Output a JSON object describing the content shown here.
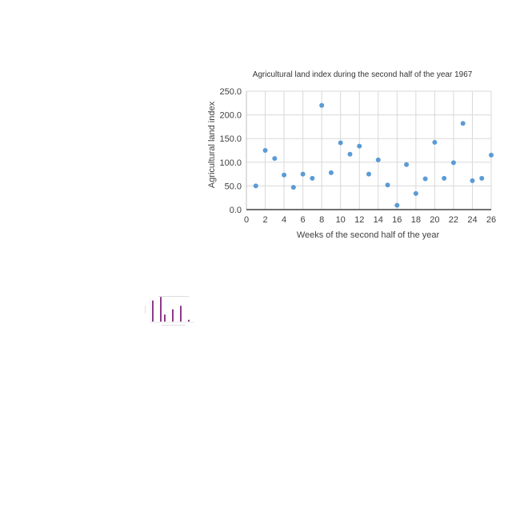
{
  "chart_data": [
    {
      "type": "scatter",
      "title": "Agricultural land index during the second half of the year 1967",
      "xlabel": "Weeks of the second half of the year",
      "ylabel": "Agricultural land index",
      "xlim": [
        0,
        26
      ],
      "ylim": [
        0,
        250
      ],
      "xticks": [
        "0",
        "2",
        "4",
        "6",
        "8",
        "10",
        "12",
        "14",
        "16",
        "18",
        "20",
        "22",
        "24",
        "26"
      ],
      "yticks": [
        "0.0",
        "50.0",
        "100.0",
        "150.0",
        "200.0",
        "250.0"
      ],
      "grid": true,
      "legend": "none",
      "marker_color": "#5b9bd5",
      "series": [
        {
          "x": [
            1,
            2,
            3,
            4,
            5,
            6,
            7,
            8,
            9,
            10,
            11,
            12,
            13,
            14,
            15,
            16,
            17,
            18,
            19,
            20,
            21,
            22,
            23,
            24,
            25,
            26
          ],
          "y": [
            50,
            125,
            108,
            73,
            47,
            75,
            66,
            220,
            78,
            141,
            117,
            134,
            75,
            105,
            52,
            9,
            95,
            34,
            65,
            142,
            66,
            99,
            182,
            61,
            66,
            115
          ]
        }
      ]
    },
    {
      "type": "bar",
      "title": "",
      "bar_color": "#8e3a8a",
      "values": [
        12,
        0,
        14,
        4,
        0,
        7,
        0,
        9,
        0,
        1
      ]
    }
  ]
}
